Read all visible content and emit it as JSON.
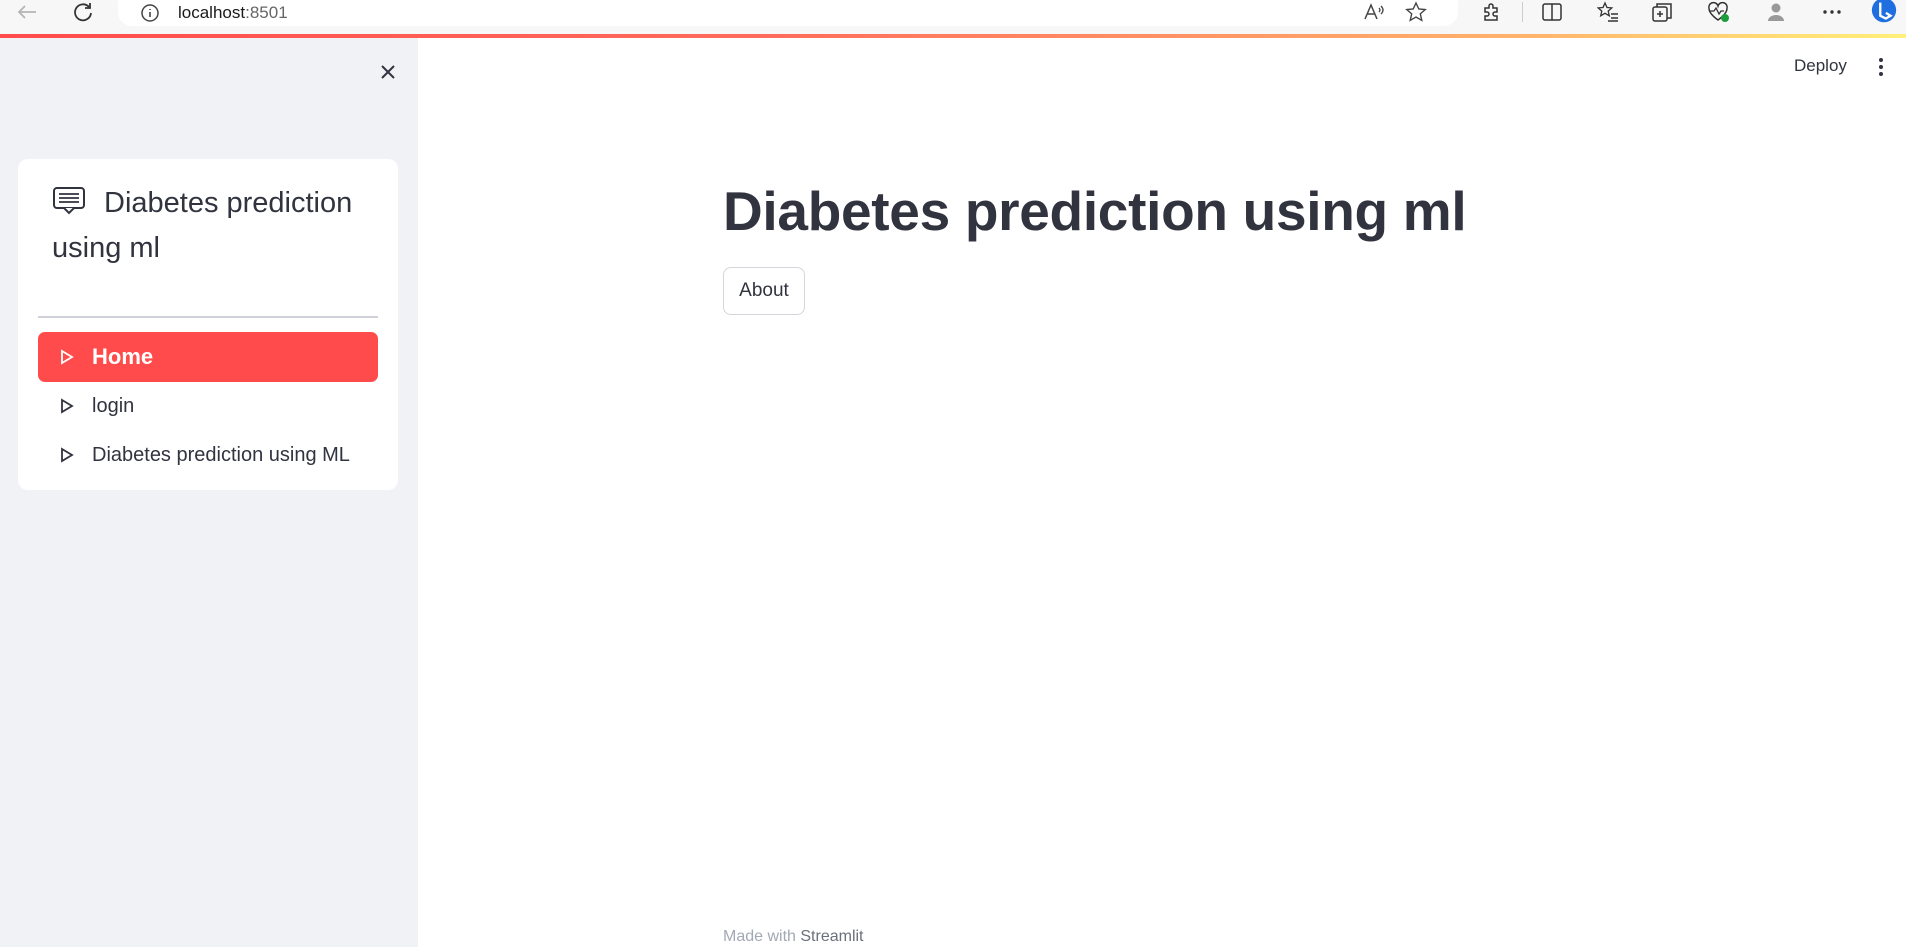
{
  "browser": {
    "url_host": "localhost",
    "url_port": ":8501"
  },
  "sidebar": {
    "menu": {
      "title": "Diabetes prediction using ml",
      "items": [
        {
          "label": "Home",
          "active": true
        },
        {
          "label": "login",
          "active": false
        },
        {
          "label": "Diabetes prediction using ML",
          "active": false
        }
      ]
    }
  },
  "header": {
    "deploy_label": "Deploy"
  },
  "main": {
    "title": "Diabetes prediction using ml",
    "about_label": "About"
  },
  "footer": {
    "prefix": "Made with",
    "brand": "Streamlit"
  },
  "colors": {
    "accent": "#ff4b4b",
    "sidebar_bg": "#f0f2f6",
    "text": "#31333f"
  }
}
